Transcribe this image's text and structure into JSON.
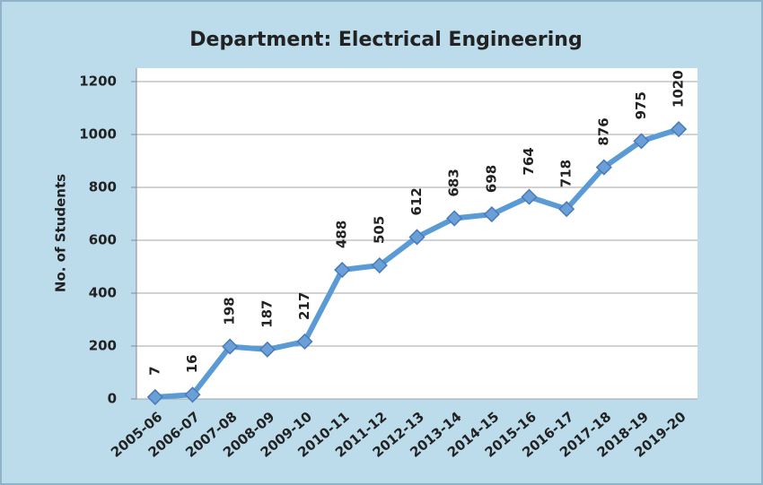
{
  "chart_data": {
    "type": "line",
    "title": "Department: Electrical Engineering",
    "y_label": "No. of Students",
    "categories": [
      "2005-06",
      "2006-07",
      "2007-08",
      "2008-09",
      "2009-10",
      "2010-11",
      "2011-12",
      "2012-13",
      "2013-14",
      "2014-15",
      "2015-16",
      "2016-17",
      "2017-18",
      "2018-19",
      "2019-20"
    ],
    "values": [
      7,
      16,
      198,
      187,
      217,
      488,
      505,
      612,
      683,
      698,
      764,
      718,
      876,
      975,
      1020
    ],
    "color": "#5b9bd5",
    "ylim": [
      0,
      1200
    ],
    "yticks": [
      0,
      200,
      400,
      600,
      800,
      1000,
      1200
    ],
    "grid": true
  }
}
